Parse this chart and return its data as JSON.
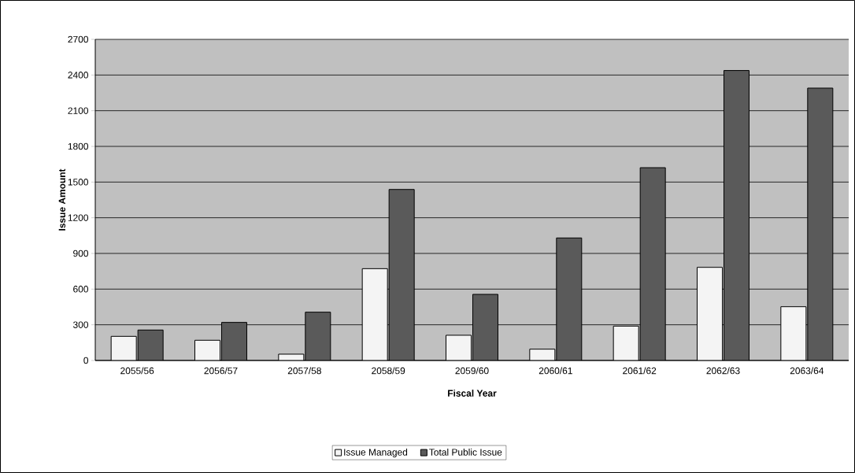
{
  "chart_data": {
    "type": "bar",
    "xlabel": "Fiscal Year",
    "ylabel": "Issue Amount",
    "categories": [
      "2055/56",
      "2056/57",
      "2057/58",
      "2058/59",
      "2059/60",
      "2060/61",
      "2061/62",
      "2062/63",
      "2063/64"
    ],
    "series": [
      {
        "name": "Issue Managed",
        "color": "#f4f4f4",
        "values": [
          203,
          170,
          53,
          772,
          212,
          95,
          289,
          783,
          452
        ]
      },
      {
        "name": "Total Public Issue",
        "color": "#5a5a5a",
        "values": [
          256,
          320,
          406,
          1438,
          556,
          1030,
          1621,
          2438,
          2290
        ]
      }
    ],
    "ylim": [
      0,
      2700
    ],
    "yticks": [
      0,
      300,
      600,
      900,
      1200,
      1500,
      1800,
      2100,
      2400,
      2700
    ],
    "grid": "y",
    "legend": "bottom"
  }
}
